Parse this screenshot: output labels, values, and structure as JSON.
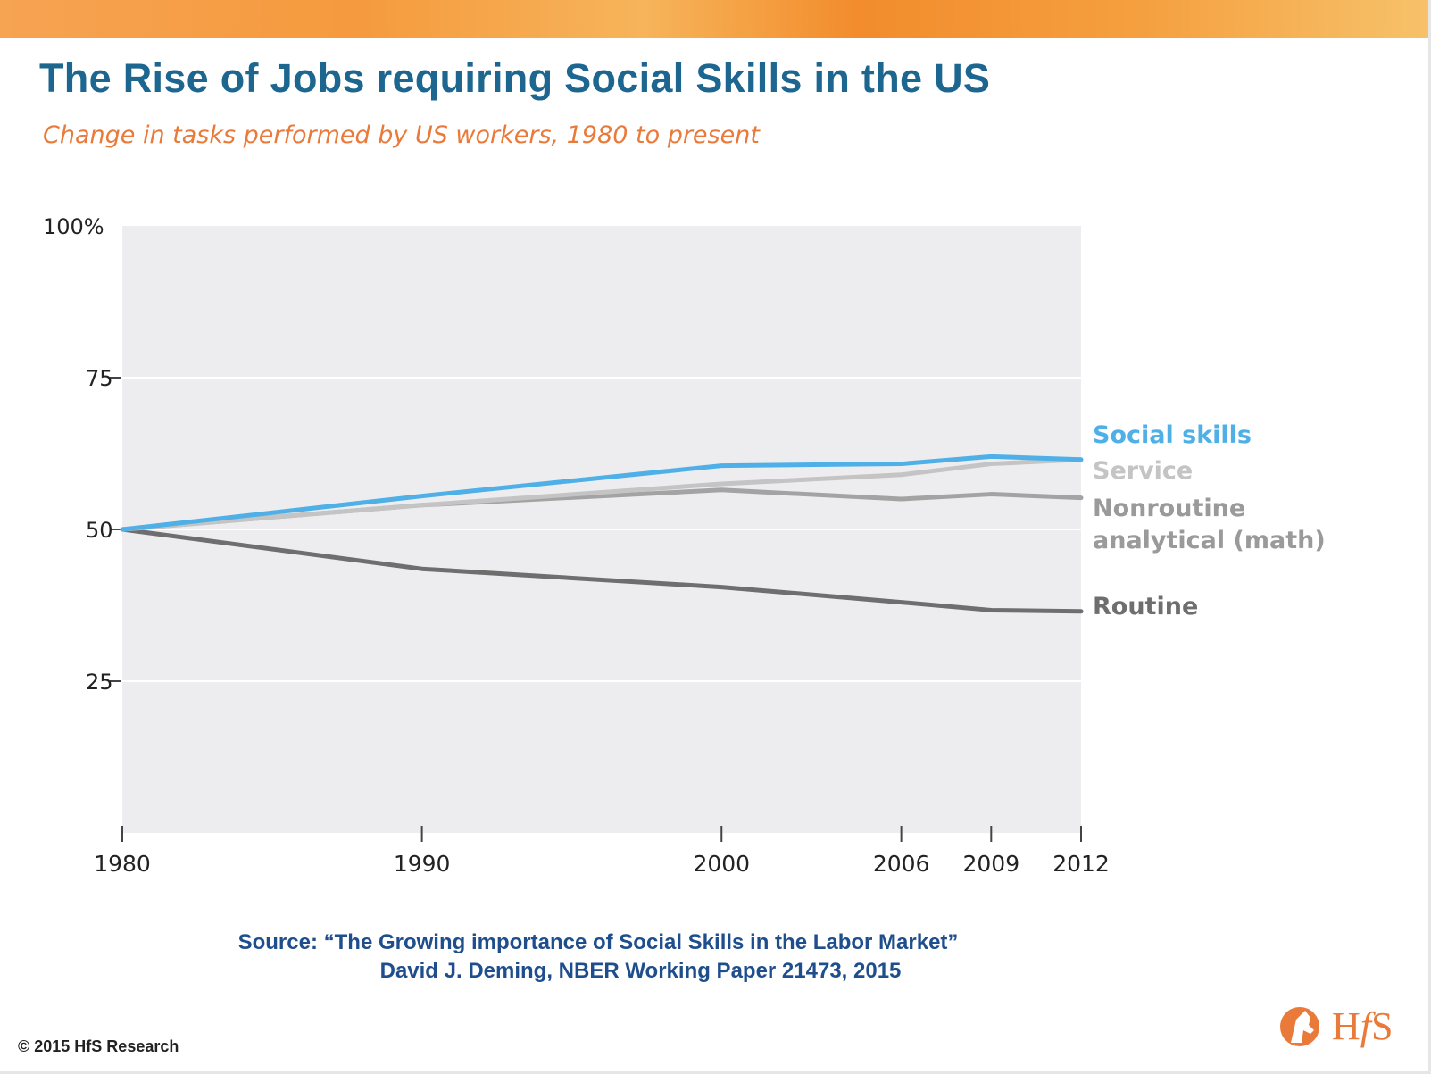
{
  "header": {
    "title": "The Rise of Jobs requiring Social Skills in the US",
    "subtitle": "Change in tasks performed by US workers, 1980 to present"
  },
  "chart_data": {
    "type": "line",
    "x": [
      1980,
      1990,
      2000,
      2006,
      2009,
      2012
    ],
    "x_tick_labels": [
      "1980",
      "1990",
      "2000",
      "2006",
      "2009",
      "2012"
    ],
    "y_ticks": [
      {
        "value": 100,
        "label": "100%"
      },
      {
        "value": 75,
        "label": "75"
      },
      {
        "value": 50,
        "label": "50"
      },
      {
        "value": 25,
        "label": "25"
      }
    ],
    "ylim": [
      0,
      100
    ],
    "grid": true,
    "legend_placement": "right, at line ends",
    "series": [
      {
        "name": "Social skills",
        "color": "#4fb0e8",
        "values": [
          50,
          55.5,
          60.5,
          60.8,
          62,
          61.5
        ]
      },
      {
        "name": "Service",
        "color": "#c4c4c4",
        "values": [
          50,
          54,
          57.5,
          59,
          60.8,
          61.5
        ]
      },
      {
        "name": "Nonroutine analytical (math)",
        "color": "#a3a3a3",
        "values": [
          50,
          54,
          56.5,
          55,
          55.8,
          55.2
        ]
      },
      {
        "name": "Routine",
        "color": "#6e6e6e",
        "values": [
          50,
          43.5,
          40.5,
          38,
          36.7,
          36.5
        ]
      }
    ]
  },
  "source": {
    "line1": "Source: “The Growing importance of Social Skills in the Labor Market”",
    "line2": "David J. Deming, NBER Working Paper 21473, 2015"
  },
  "footer": {
    "copyright": "© 2015 HfS Research",
    "logo_text_h": "H",
    "logo_text_f": "f",
    "logo_text_s": "S"
  }
}
